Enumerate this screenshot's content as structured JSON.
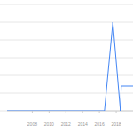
{
  "chart_data": {
    "type": "line",
    "x": [
      2005,
      2016.6,
      2017.6,
      2018.5,
      2018.6,
      2020
    ],
    "values": [
      0,
      0,
      100,
      0,
      28,
      28
    ],
    "color": "#4285f4",
    "xlim": [
      2005,
      2020
    ],
    "xticks": [
      2008,
      2010,
      2012,
      2014,
      2016,
      2018
    ],
    "ylim": [
      0,
      120
    ],
    "yticks": [
      0,
      20,
      40,
      60,
      80,
      100,
      120
    ],
    "grid": true,
    "tick_labels": "x"
  }
}
